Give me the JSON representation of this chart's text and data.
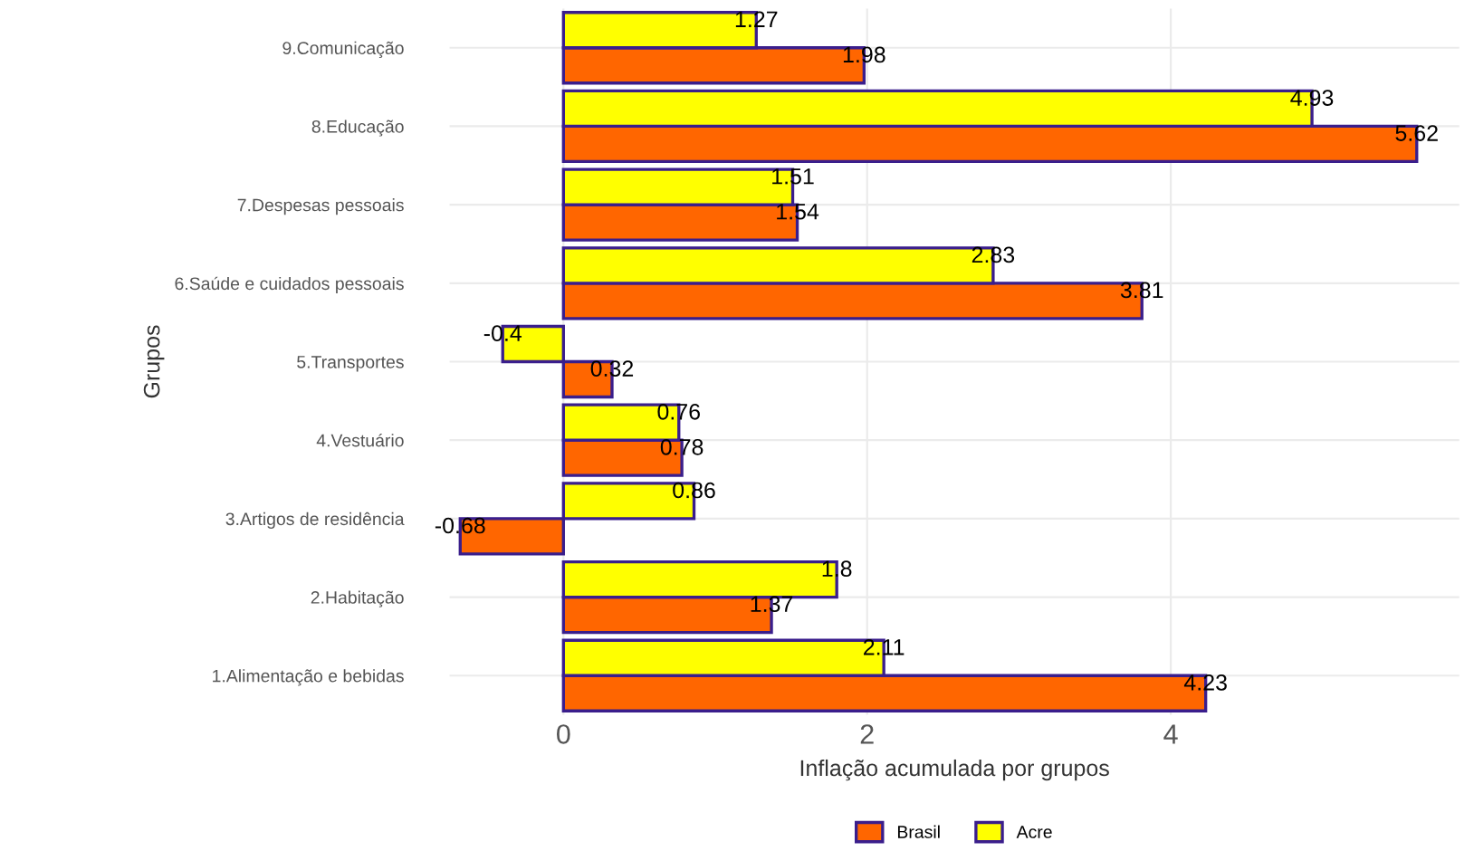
{
  "chart_data": {
    "type": "bar",
    "orientation": "horizontal",
    "xlabel": "Inflação acumulada por grupos",
    "ylabel": "Grupos",
    "categories": [
      "9.Comunicação",
      "8.Educação",
      "7.Despesas pessoais",
      "6.Saúde e cuidados pessoais",
      "5.Transportes",
      "4.Vestuário",
      "3.Artigos de residência",
      "2.Habitação",
      "1.Alimentação e bebidas"
    ],
    "series": [
      {
        "name": "Brasil",
        "color": "#ff6600",
        "values": [
          1.98,
          5.62,
          1.54,
          3.81,
          0.32,
          0.78,
          -0.68,
          1.37,
          4.23
        ]
      },
      {
        "name": "Acre",
        "color": "#ffff00",
        "values": [
          1.27,
          4.93,
          1.51,
          2.83,
          -0.4,
          0.76,
          0.86,
          1.8,
          2.11
        ]
      }
    ],
    "xlim": [
      -0.75,
      5.9
    ],
    "xticks": [
      0,
      2,
      4
    ],
    "grid": true,
    "legend": "bottom",
    "data_labels": true
  }
}
